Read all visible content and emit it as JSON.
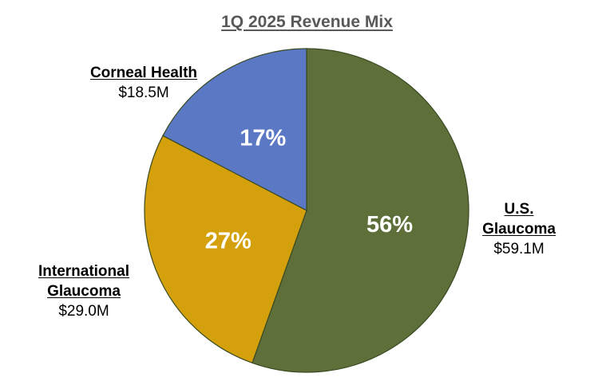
{
  "chart_data": {
    "type": "pie",
    "title": "1Q 2025 Revenue Mix",
    "slices": [
      {
        "key": "us",
        "name_lines": [
          "U.S.",
          "Glaucoma"
        ],
        "value": 59.1,
        "value_label": "$59.1M",
        "percent_label": "56%",
        "color": "#5e6f3a"
      },
      {
        "key": "intl",
        "name_lines": [
          "International",
          "Glaucoma"
        ],
        "value": 29.0,
        "value_label": "$29.0M",
        "percent_label": "27%",
        "color": "#d4a10c"
      },
      {
        "key": "corneal",
        "name_lines": [
          "Corneal Health"
        ],
        "value": 18.5,
        "value_label": "$18.5M",
        "percent_label": "17%",
        "color": "#5a78c4"
      }
    ],
    "start_angle": "12 o'clock",
    "direction": "clockwise"
  }
}
